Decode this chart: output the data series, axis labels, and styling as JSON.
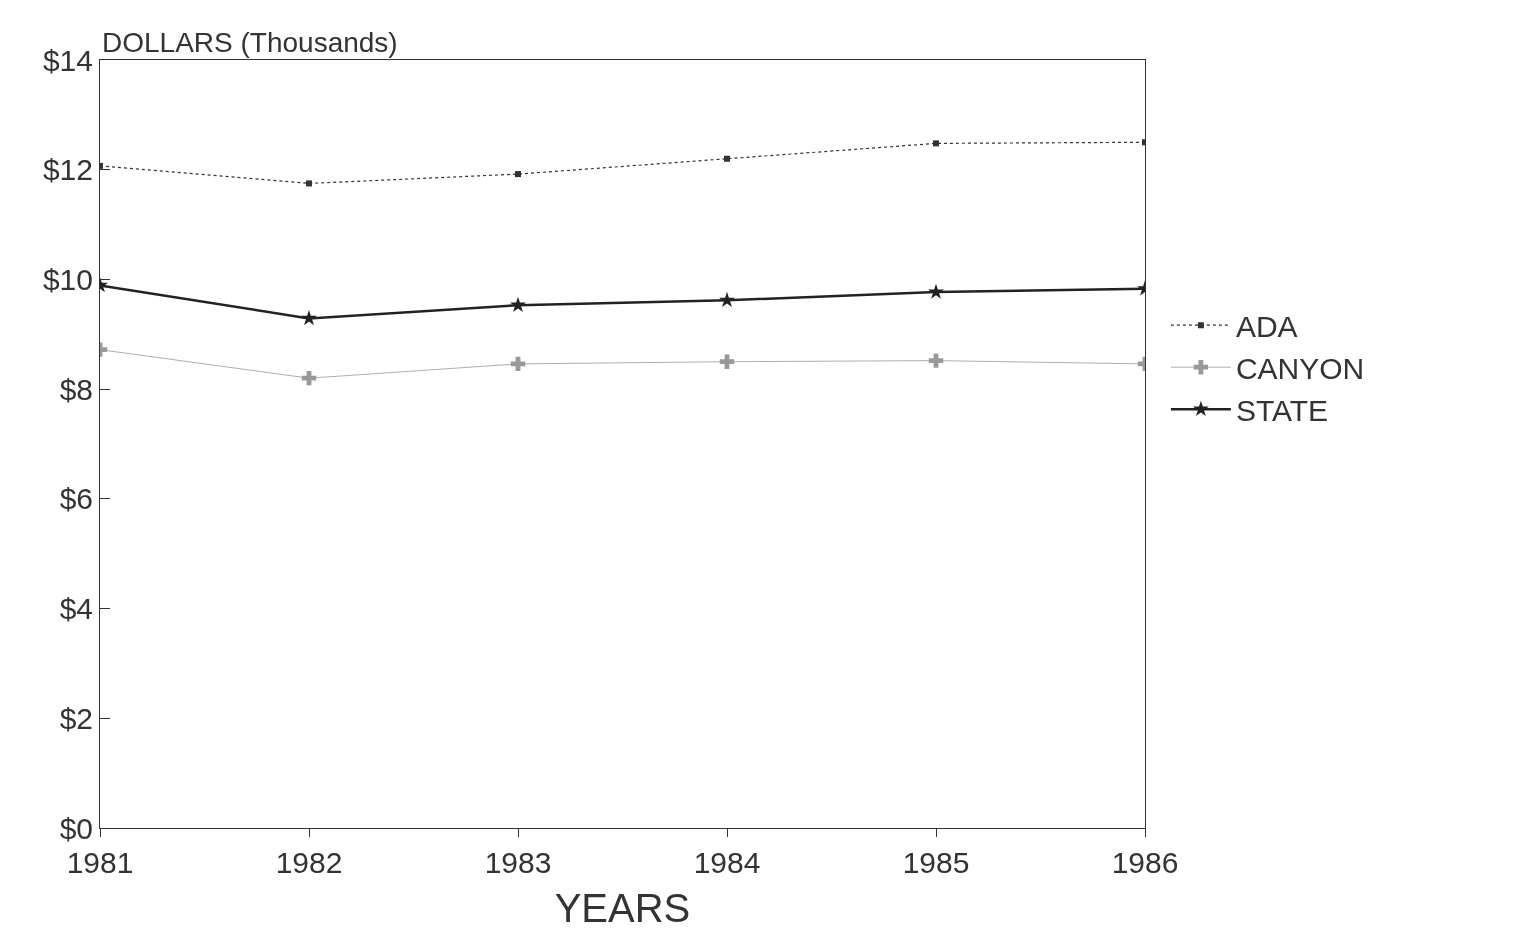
{
  "chart_data": {
    "type": "line",
    "xlabel": "YEARS",
    "ylabel": "DOLLARS (Thousands)",
    "x": [
      1981,
      1982,
      1983,
      1984,
      1985,
      1986
    ],
    "xlim": [
      1981,
      1986
    ],
    "xticks": [
      1981,
      1982,
      1983,
      1984,
      1985,
      1986
    ],
    "ylim": [
      0,
      14
    ],
    "yticks": [
      {
        "value": 0,
        "label": "$0"
      },
      {
        "value": 2,
        "label": "$2"
      },
      {
        "value": 4,
        "label": "$4"
      },
      {
        "value": 6,
        "label": "$6"
      },
      {
        "value": 8,
        "label": "$8"
      },
      {
        "value": 10,
        "label": "$10"
      },
      {
        "value": 12,
        "label": "$12"
      },
      {
        "value": 14,
        "label": "$14"
      }
    ],
    "series": [
      {
        "name": "ADA",
        "color": "#333333",
        "marker": "square",
        "line_style": "dotted",
        "values": [
          12.07,
          11.75,
          11.92,
          12.2,
          12.48,
          12.5
        ]
      },
      {
        "name": "CANYON",
        "color": "#999999",
        "marker": "cross",
        "line_style": "solid",
        "values": [
          8.72,
          8.2,
          8.46,
          8.5,
          8.52,
          8.46
        ]
      },
      {
        "name": "STATE",
        "color": "#222222",
        "marker": "star",
        "line_style": "solid",
        "values": [
          9.89,
          9.29,
          9.53,
          9.62,
          9.77,
          9.83
        ]
      }
    ],
    "legend": "right"
  }
}
